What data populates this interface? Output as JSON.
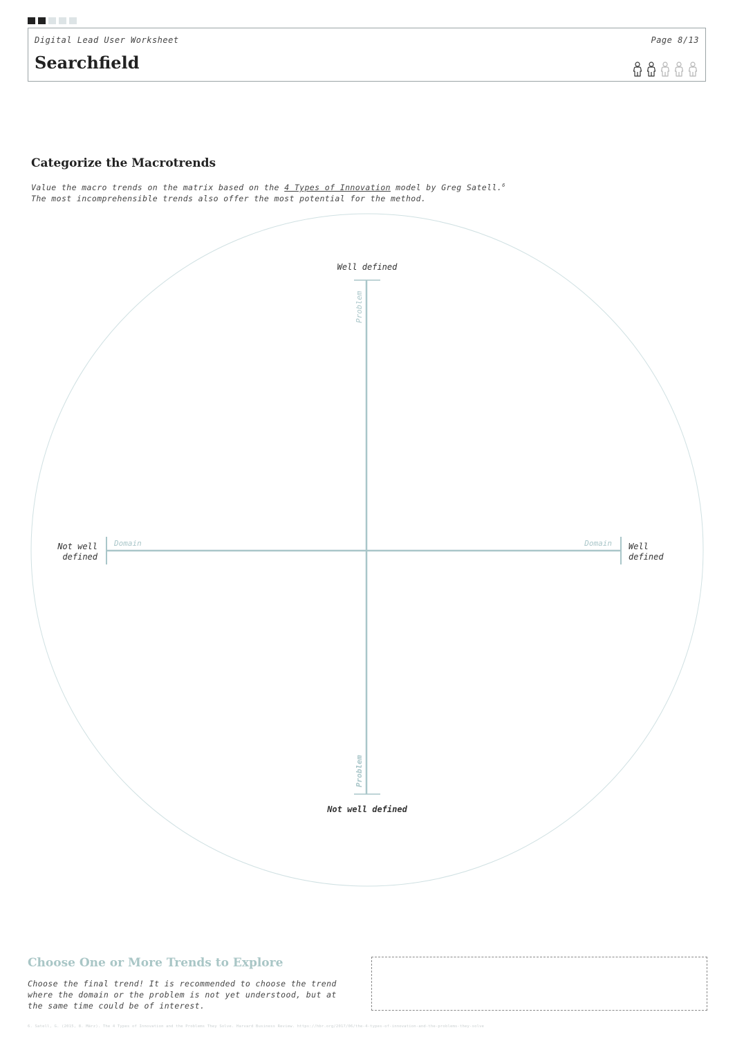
{
  "header": {
    "progress": {
      "total": 5,
      "current": 2
    },
    "doc_label": "Digital Lead User Worksheet",
    "page": "Page 8/13",
    "title": "Searchfield",
    "people": {
      "total": 5,
      "filled": 2,
      "icon": "person-icon"
    }
  },
  "section": {
    "title": "Categorize the Macrotrends",
    "desc_line1_before": "Value the macro trends on the matrix based on the ",
    "desc_link": "4 Types of Innovation",
    "desc_line1_after": " model by Greg Satell.",
    "desc_footnote_ref": "6",
    "desc_line2": "The most incomprehensible trends also offer the most potential for the method."
  },
  "matrix": {
    "top_label": "Well defined",
    "bottom_label": "Not well defined",
    "left_label_line1": "Not well",
    "left_label_line2": "defined",
    "right_label_line1": "Well",
    "right_label_line2": "defined",
    "top_axis_name": "Problem",
    "bottom_axis_name": "Problem",
    "left_axis_name": "Domain",
    "right_axis_name": "Domain",
    "axis_color": "#a9c6c9",
    "circle_color": "#cfe0e2"
  },
  "footer": {
    "title": "Choose One or More Trends to Explore",
    "desc": "Choose the final trend! It is recommended to choose the trend where the domain or the problem is not yet understood, but at the same time could be of interest.",
    "footnote": "6. Satell, G. (2015, 8. März). The 4 Types of Innovation and the Problems They Solve. Harvard Business Review. https://hbr.org/2017/06/the-4-types-of-innovation-and-the-problems-they-solve"
  }
}
